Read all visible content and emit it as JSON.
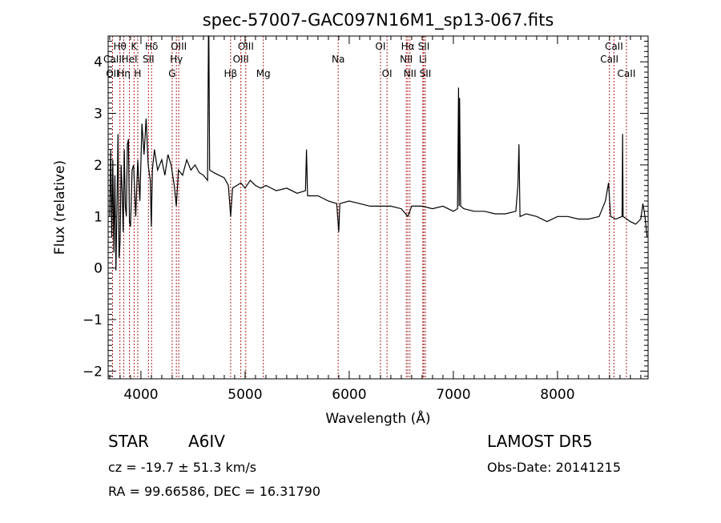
{
  "chart_data": {
    "type": "line",
    "title": "spec-57007-GAC097N16M1_sp13-067.fits",
    "xlabel": "Wavelength (Å)",
    "ylabel": "Flux (relative)",
    "xlim": [
      3685,
      8870
    ],
    "ylim": [
      -2.15,
      4.5
    ],
    "xticks": [
      4000,
      5000,
      6000,
      7000,
      8000
    ],
    "yticks": [
      -2,
      -1,
      0,
      1,
      2,
      3,
      4
    ],
    "grid": false,
    "line_color": "#000000",
    "marker_color": "#b22222",
    "spectral_lines": [
      {
        "label": "Hθ",
        "wave": 3798,
        "row": 0
      },
      {
        "label": "K",
        "wave": 3934,
        "row": 0
      },
      {
        "label": "Hδ",
        "wave": 4102,
        "row": 0
      },
      {
        "label": "OIII",
        "wave": 4363,
        "row": 0
      },
      {
        "label": "OIII",
        "wave": 5007,
        "row": 0
      },
      {
        "label": "OI",
        "wave": 6300,
        "row": 0
      },
      {
        "label": "Hα",
        "wave": 6563,
        "row": 0
      },
      {
        "label": "SII",
        "wave": 6716,
        "row": 0
      },
      {
        "label": "CaII",
        "wave": 8542,
        "row": 0
      },
      {
        "label": "CaII",
        "wave": 3727,
        "row": 1
      },
      {
        "label": "HeI",
        "wave": 3889,
        "row": 1
      },
      {
        "label": "SII",
        "wave": 4072,
        "row": 1
      },
      {
        "label": "Hγ",
        "wave": 4340,
        "row": 1
      },
      {
        "label": "OIII",
        "wave": 4959,
        "row": 1
      },
      {
        "label": "Na",
        "wave": 5894,
        "row": 1
      },
      {
        "label": "NII",
        "wave": 6548,
        "row": 1
      },
      {
        "label": "Li",
        "wave": 6707,
        "row": 1
      },
      {
        "label": "CaII",
        "wave": 8498,
        "row": 1
      },
      {
        "label": "OII",
        "wave": 3727,
        "row": 2
      },
      {
        "label": "Hη",
        "wave": 3835,
        "row": 2
      },
      {
        "label": "H",
        "wave": 3969,
        "row": 2
      },
      {
        "label": "G",
        "wave": 4300,
        "row": 2
      },
      {
        "label": "Hβ",
        "wave": 4861,
        "row": 2
      },
      {
        "label": "Mg",
        "wave": 5175,
        "row": 2
      },
      {
        "label": "OI",
        "wave": 6363,
        "row": 2
      },
      {
        "label": "NII",
        "wave": 6583,
        "row": 2
      },
      {
        "label": "SII",
        "wave": 6731,
        "row": 2
      },
      {
        "label": "CaII",
        "wave": 8662,
        "row": 2
      }
    ],
    "series": [
      {
        "name": "flux",
        "x": [
          3700,
          3710,
          3720,
          3730,
          3740,
          3750,
          3760,
          3770,
          3780,
          3790,
          3800,
          3810,
          3820,
          3830,
          3840,
          3850,
          3860,
          3870,
          3880,
          3890,
          3900,
          3915,
          3930,
          3950,
          3970,
          3990,
          4010,
          4030,
          4050,
          4070,
          4090,
          4100,
          4110,
          4130,
          4160,
          4200,
          4230,
          4260,
          4290,
          4320,
          4340,
          4360,
          4400,
          4440,
          4480,
          4520,
          4560,
          4600,
          4640,
          4648,
          4652,
          4660,
          4700,
          4750,
          4800,
          4840,
          4861,
          4880,
          4920,
          4960,
          5000,
          5050,
          5100,
          5150,
          5200,
          5250,
          5300,
          5400,
          5500,
          5580,
          5590,
          5600,
          5700,
          5800,
          5880,
          5900,
          5910,
          6000,
          6100,
          6200,
          6300,
          6400,
          6500,
          6563,
          6600,
          6700,
          6800,
          6900,
          7000,
          7040,
          7050,
          7055,
          7060,
          7065,
          7070,
          7100,
          7200,
          7300,
          7400,
          7500,
          7600,
          7620,
          7630,
          7640,
          7700,
          7800,
          7900,
          8000,
          8100,
          8200,
          8300,
          8400,
          8460,
          8490,
          8510,
          8560,
          8620,
          8625,
          8630,
          8700,
          8750,
          8800,
          8820,
          8840,
          8860
        ],
        "y": [
          1.0,
          2.3,
          0.6,
          2.1,
          0.3,
          1.8,
          -0.05,
          1.2,
          2.6,
          0.2,
          0.5,
          2.0,
          1.5,
          0.7,
          2.3,
          1.2,
          1.0,
          2.4,
          2.5,
          0.9,
          0.8,
          1.9,
          2.0,
          1.0,
          2.1,
          1.3,
          2.8,
          2.2,
          2.9,
          2.0,
          1.7,
          0.8,
          1.9,
          2.3,
          1.9,
          2.1,
          1.8,
          2.2,
          2.0,
          1.6,
          1.2,
          1.9,
          1.8,
          2.1,
          1.9,
          2.0,
          1.85,
          1.8,
          1.7,
          4.6,
          4.6,
          1.9,
          1.85,
          1.8,
          1.75,
          1.6,
          1.0,
          1.55,
          1.6,
          1.65,
          1.55,
          1.7,
          1.6,
          1.55,
          1.6,
          1.55,
          1.5,
          1.55,
          1.45,
          1.5,
          2.3,
          1.4,
          1.4,
          1.3,
          1.25,
          0.7,
          1.25,
          1.3,
          1.25,
          1.2,
          1.2,
          1.2,
          1.15,
          1.0,
          1.2,
          1.2,
          1.15,
          1.2,
          1.1,
          1.15,
          3.5,
          1.2,
          3.3,
          2.1,
          1.2,
          1.15,
          1.1,
          1.1,
          1.05,
          1.05,
          1.1,
          1.6,
          2.4,
          1.0,
          1.05,
          1.0,
          0.9,
          1.0,
          1.0,
          0.95,
          0.95,
          1.0,
          1.3,
          1.65,
          1.0,
          0.95,
          1.0,
          2.6,
          1.0,
          0.9,
          0.85,
          0.95,
          1.25,
          1.0,
          0.6
        ]
      }
    ]
  },
  "info": {
    "object_type": "STAR",
    "subclass": "A6IV",
    "cz": "cz = -19.7 ± 51.3 km/s",
    "radec": "RA =  99.66586, DEC =  16.31790",
    "survey": "LAMOST DR5",
    "obs_date": "Obs-Date: 20141215"
  }
}
